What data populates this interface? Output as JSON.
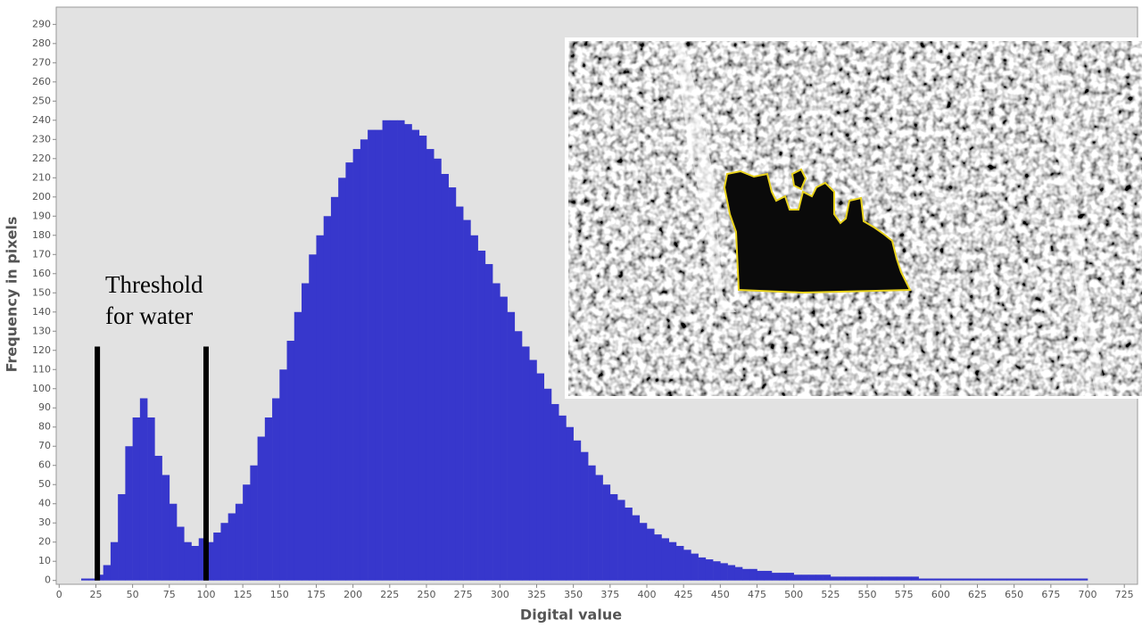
{
  "chart_data": {
    "type": "histogram",
    "xlabel": "Digital value",
    "ylabel": "Frequency in pixels",
    "annotation": [
      "Threshold",
      "for water"
    ],
    "threshold_lines": [
      {
        "x": 26,
        "y": [
          0,
          122
        ]
      },
      {
        "x": 100,
        "y": [
          0,
          122
        ]
      }
    ],
    "color": "#3737cc",
    "bins": [
      0,
      5,
      10,
      15,
      20,
      25,
      30,
      35,
      40,
      45,
      50,
      55,
      60,
      65,
      70,
      75,
      80,
      85,
      90,
      95,
      100,
      105,
      110,
      115,
      120,
      125,
      130,
      135,
      140,
      145,
      150,
      155,
      160,
      165,
      170,
      175,
      180,
      185,
      190,
      195,
      200,
      205,
      210,
      215,
      220,
      225,
      230,
      235,
      240,
      245,
      250,
      255,
      260,
      265,
      270,
      275,
      280,
      285,
      290,
      295,
      300,
      305,
      310,
      315,
      320,
      325,
      330,
      335,
      340,
      345,
      350,
      355,
      360,
      365,
      370,
      375,
      380,
      385,
      390,
      395,
      400,
      405,
      410,
      415,
      420,
      425,
      430,
      435,
      440,
      445,
      450,
      455,
      460,
      465,
      470,
      475,
      480,
      485,
      490,
      495,
      500,
      505,
      510,
      515,
      520,
      525,
      530,
      535,
      540,
      545,
      550,
      555,
      560,
      565,
      570,
      575,
      580,
      585,
      590,
      595,
      600,
      605,
      610,
      615,
      620,
      625,
      630,
      635,
      640,
      645,
      650,
      655,
      660,
      665,
      670,
      675,
      680,
      685,
      690,
      695,
      700
    ],
    "values": [
      0,
      0,
      0,
      1,
      1,
      3,
      8,
      20,
      45,
      70,
      85,
      95,
      85,
      65,
      55,
      40,
      28,
      20,
      18,
      22,
      20,
      25,
      30,
      35,
      40,
      50,
      60,
      75,
      85,
      95,
      110,
      125,
      140,
      155,
      170,
      180,
      190,
      200,
      210,
      218,
      225,
      230,
      235,
      235,
      240,
      240,
      240,
      238,
      235,
      232,
      225,
      220,
      212,
      205,
      195,
      188,
      180,
      172,
      165,
      155,
      148,
      140,
      130,
      122,
      115,
      108,
      100,
      92,
      86,
      80,
      73,
      67,
      60,
      55,
      50,
      45,
      42,
      38,
      34,
      30,
      27,
      24,
      22,
      20,
      18,
      16,
      14,
      12,
      11,
      10,
      9,
      8,
      7,
      6,
      6,
      5,
      5,
      4,
      4,
      4,
      3,
      3,
      3,
      3,
      3,
      2,
      2,
      2,
      2,
      2,
      2,
      2,
      2,
      2,
      2,
      2,
      2,
      1,
      1,
      1,
      1,
      1,
      1,
      1,
      1,
      1,
      1,
      1,
      1,
      1,
      1,
      1,
      1,
      1,
      1,
      1,
      1,
      1,
      1,
      1
    ],
    "xlim": [
      -2,
      734
    ],
    "ylim": [
      -2,
      299
    ],
    "xticks": [
      0,
      25,
      50,
      75,
      100,
      125,
      150,
      175,
      200,
      225,
      250,
      275,
      300,
      325,
      350,
      375,
      400,
      425,
      450,
      475,
      500,
      525,
      550,
      575,
      600,
      625,
      650,
      675,
      700,
      725
    ],
    "yticks": [
      0,
      10,
      20,
      30,
      40,
      50,
      60,
      70,
      80,
      90,
      100,
      110,
      120,
      130,
      140,
      150,
      160,
      170,
      180,
      190,
      200,
      210,
      220,
      230,
      240,
      250,
      260,
      270,
      280,
      290
    ]
  }
}
